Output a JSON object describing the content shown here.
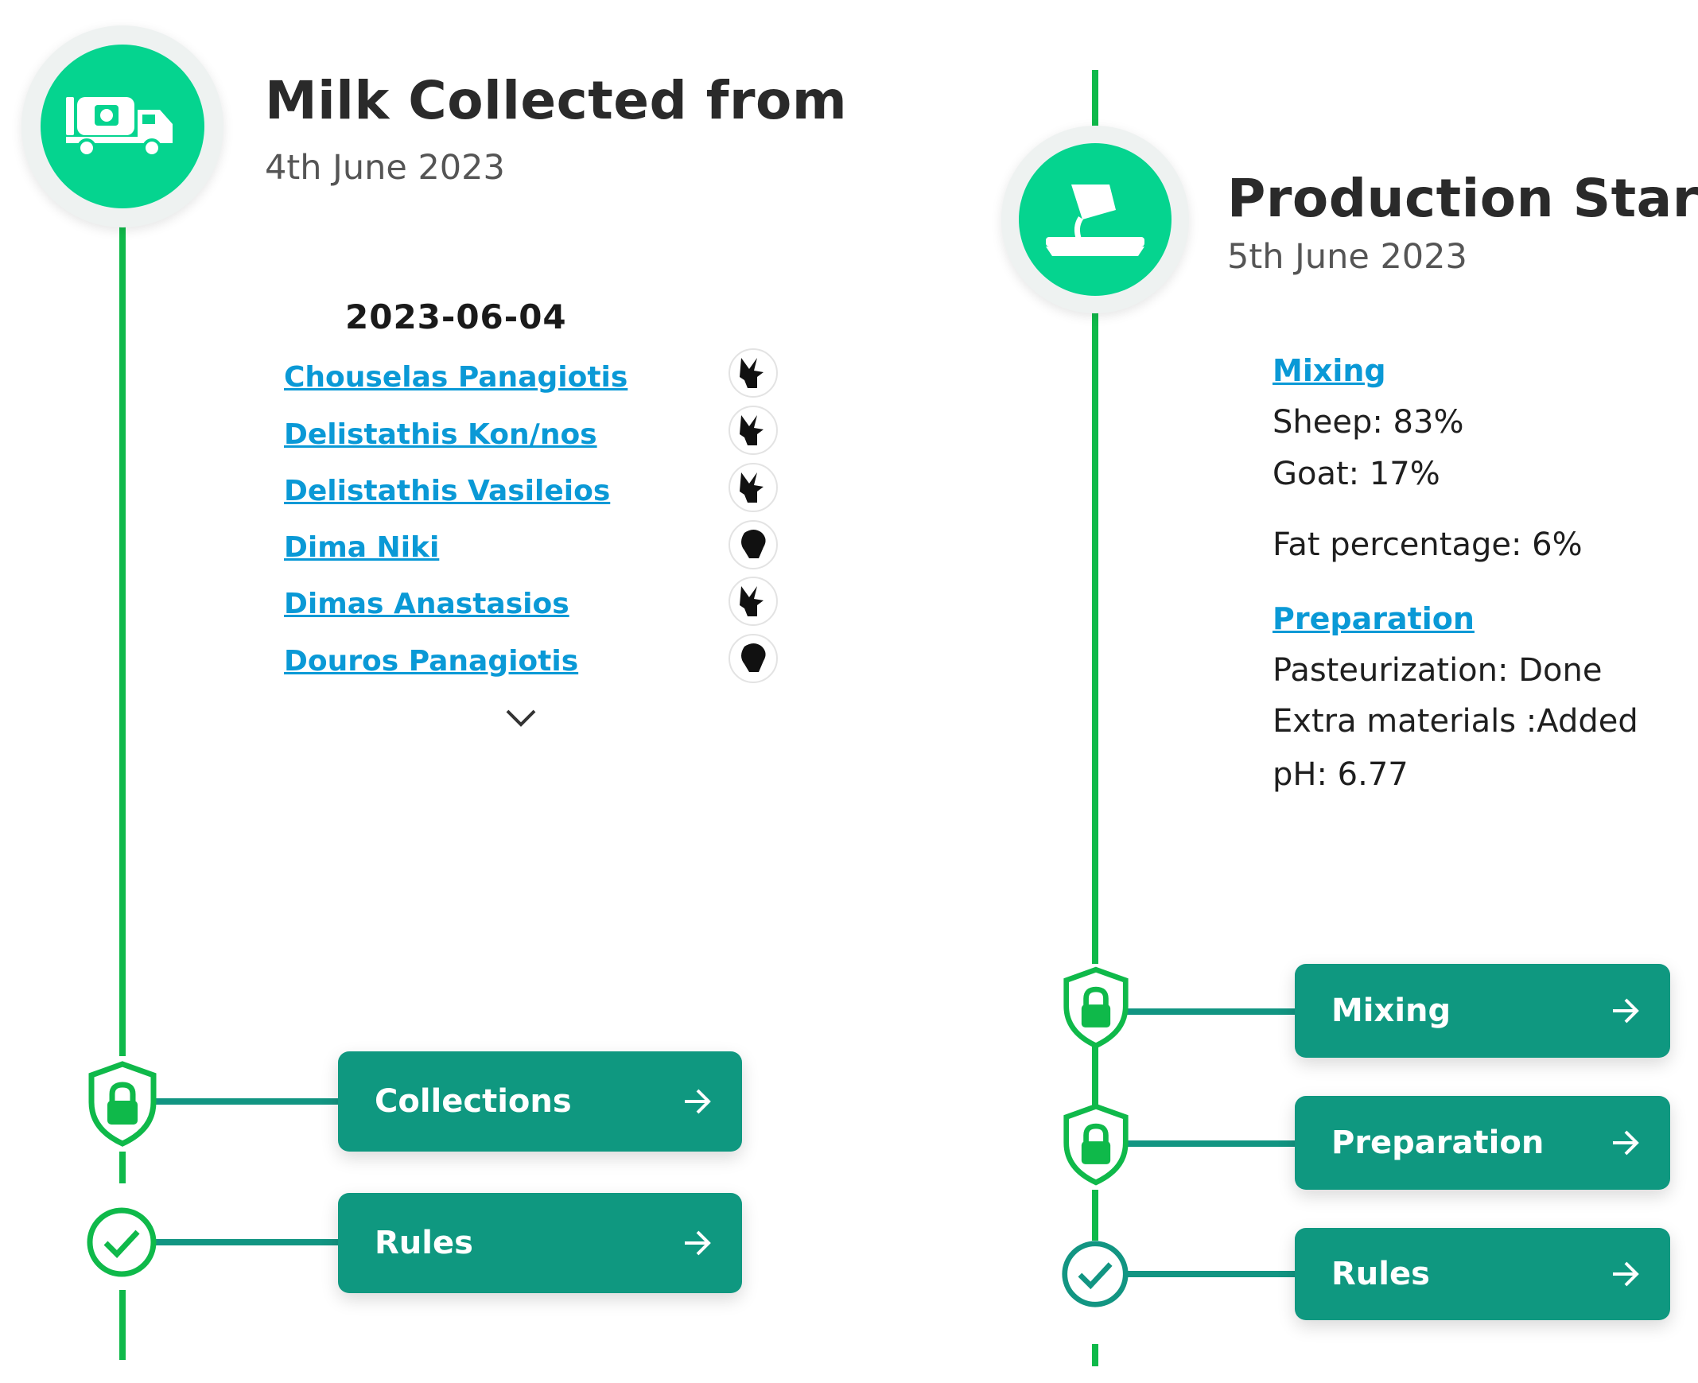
{
  "left": {
    "title": "Milk Collected from",
    "subtitle": "4th June 2023",
    "collection_date": "2023-06-04",
    "farmers": [
      {
        "name": "Chouselas Panagiotis",
        "animal": "goat-icon"
      },
      {
        "name": "Delistathis Kon/nos",
        "animal": "goat-icon"
      },
      {
        "name": "Delistathis Vasileios",
        "animal": "goat-icon"
      },
      {
        "name": "Dima Niki",
        "animal": "sheep-icon"
      },
      {
        "name": "Dimas Anastasios",
        "animal": "goat-icon"
      },
      {
        "name": "Douros Panagiotis",
        "animal": "sheep-icon"
      }
    ],
    "buttons": {
      "collections_label": "Collections",
      "rules_label": "Rules"
    }
  },
  "right": {
    "title": "Production Start",
    "subtitle": "5th June 2023",
    "mixing_link": "Mixing",
    "sheep_line": "Sheep: 83%",
    "goat_line": "Goat: 17%",
    "fat_line": "Fat percentage: 6%",
    "preparation_link": "Preparation",
    "pasteurization_line": "Pasteurization: Done",
    "extra_materials_line": "Extra materials :Added",
    "ph_line": "pH: 6.77",
    "buttons": {
      "mixing_label": "Mixing",
      "preparation_label": "Preparation",
      "rules_label": "Rules"
    }
  },
  "colors": {
    "timeline_green": "#0fb94a",
    "icon_green": "#05d48f",
    "button_teal": "#0f9880",
    "link_blue": "#0a99d6"
  }
}
